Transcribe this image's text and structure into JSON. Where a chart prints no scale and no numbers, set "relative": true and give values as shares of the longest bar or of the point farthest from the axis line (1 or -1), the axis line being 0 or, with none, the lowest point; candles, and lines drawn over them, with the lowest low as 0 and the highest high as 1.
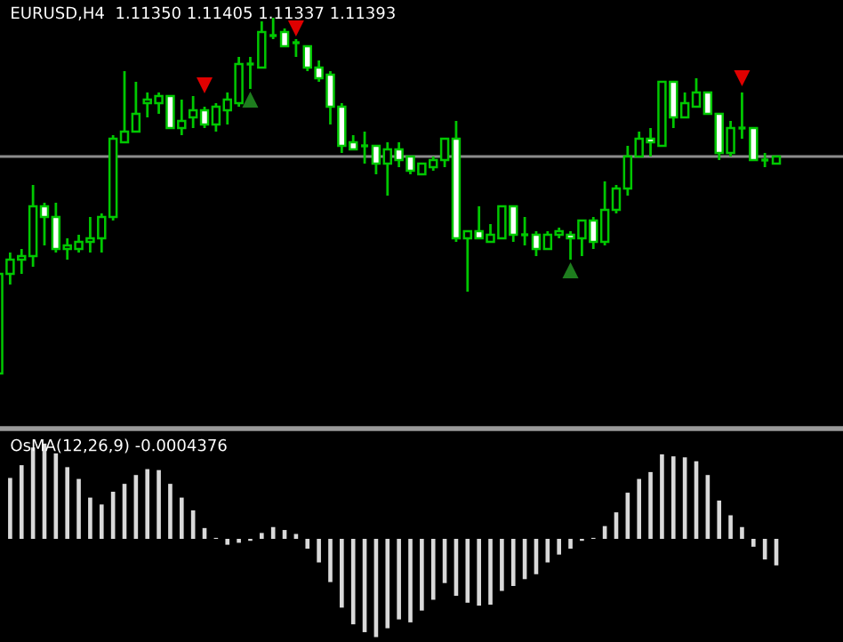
{
  "chart_data": [
    {
      "type": "candlestick",
      "relative": true,
      "title": "EURUSD,H4  1.11350 1.11405 1.11337 1.11393",
      "grid": false,
      "categories": [
        null,
        null,
        null,
        null,
        null,
        null,
        null,
        null,
        null,
        null,
        null,
        null,
        null,
        null,
        null,
        null,
        null,
        null,
        null,
        null,
        null,
        null,
        null,
        null,
        null,
        null,
        null,
        null,
        null,
        null,
        null,
        null,
        null,
        null,
        null,
        null,
        null,
        null,
        null,
        null,
        null,
        null,
        null,
        null,
        null,
        null,
        null,
        null,
        null,
        null,
        null,
        null,
        null,
        null,
        null,
        null,
        null,
        null,
        null,
        null,
        null,
        null,
        null,
        null,
        null,
        null,
        null,
        null,
        null
      ],
      "ohlc": [
        [
          0,
          0.28,
          0,
          0.28
        ],
        [
          0.28,
          0.34,
          0.25,
          0.32
        ],
        [
          0.32,
          0.35,
          0.28,
          0.33
        ],
        [
          0.33,
          0.53,
          0.3,
          0.47
        ],
        [
          0.47,
          0.48,
          0.36,
          0.44
        ],
        [
          0.44,
          0.48,
          0.34,
          0.35
        ],
        [
          0.35,
          0.38,
          0.32,
          0.36
        ],
        [
          0.35,
          0.39,
          0.34,
          0.37
        ],
        [
          0.37,
          0.44,
          0.34,
          0.38
        ],
        [
          0.38,
          0.45,
          0.34,
          0.44
        ],
        [
          0.44,
          0.67,
          0.43,
          0.66
        ],
        [
          0.65,
          0.85,
          0.65,
          0.68
        ],
        [
          0.68,
          0.82,
          0.68,
          0.73
        ],
        [
          0.76,
          0.79,
          0.72,
          0.77
        ],
        [
          0.76,
          0.79,
          0.73,
          0.78
        ],
        [
          0.78,
          0.78,
          0.69,
          0.69
        ],
        [
          0.69,
          0.77,
          0.67,
          0.71
        ],
        [
          0.72,
          0.78,
          0.69,
          0.74
        ],
        [
          0.74,
          0.75,
          0.69,
          0.7
        ],
        [
          0.7,
          0.76,
          0.68,
          0.75
        ],
        [
          0.74,
          0.79,
          0.7,
          0.77
        ],
        [
          0.76,
          0.89,
          0.75,
          0.87
        ],
        [
          0.87,
          0.89,
          0.8,
          0.87
        ],
        [
          0.86,
          0.99,
          0.86,
          0.96
        ],
        [
          0.95,
          1,
          0.94,
          0.95
        ],
        [
          0.96,
          0.97,
          0.92,
          0.92
        ],
        [
          0.93,
          0.94,
          0.89,
          0.93
        ],
        [
          0.92,
          0.92,
          0.85,
          0.86
        ],
        [
          0.86,
          0.88,
          0.82,
          0.83
        ],
        [
          0.84,
          0.85,
          0.7,
          0.75
        ],
        [
          0.75,
          0.76,
          0.62,
          0.64
        ],
        [
          0.65,
          0.67,
          0.63,
          0.63
        ],
        [
          0.64,
          0.68,
          0.59,
          0.64
        ],
        [
          0.64,
          0.64,
          0.56,
          0.59
        ],
        [
          0.59,
          0.65,
          0.5,
          0.63
        ],
        [
          0.63,
          0.65,
          0.58,
          0.6
        ],
        [
          0.61,
          0.61,
          0.56,
          0.57
        ],
        [
          0.56,
          0.59,
          0.56,
          0.59
        ],
        [
          0.58,
          0.61,
          0.57,
          0.6
        ],
        [
          0.6,
          0.66,
          0.58,
          0.66
        ],
        [
          0.66,
          0.71,
          0.37,
          0.38
        ],
        [
          0.38,
          0.4,
          0.23,
          0.4
        ],
        [
          0.4,
          0.47,
          0.38,
          0.38
        ],
        [
          0.37,
          0.42,
          0.37,
          0.39
        ],
        [
          0.38,
          0.47,
          0.38,
          0.47
        ],
        [
          0.47,
          0.47,
          0.37,
          0.39
        ],
        [
          0.39,
          0.44,
          0.36,
          0.39
        ],
        [
          0.39,
          0.4,
          0.33,
          0.35
        ],
        [
          0.35,
          0.4,
          0.35,
          0.39
        ],
        [
          0.39,
          0.41,
          0.38,
          0.4
        ],
        [
          0.39,
          0.4,
          0.32,
          0.38
        ],
        [
          0.38,
          0.43,
          0.33,
          0.43
        ],
        [
          0.43,
          0.44,
          0.35,
          0.37
        ],
        [
          0.37,
          0.54,
          0.36,
          0.46
        ],
        [
          0.46,
          0.53,
          0.45,
          0.52
        ],
        [
          0.52,
          0.64,
          0.5,
          0.61
        ],
        [
          0.61,
          0.68,
          0.61,
          0.66
        ],
        [
          0.66,
          0.69,
          0.61,
          0.65
        ],
        [
          0.64,
          0.82,
          0.64,
          0.82
        ],
        [
          0.82,
          0.82,
          0.69,
          0.72
        ],
        [
          0.72,
          0.79,
          0.72,
          0.76
        ],
        [
          0.75,
          0.83,
          0.75,
          0.79
        ],
        [
          0.79,
          0.79,
          0.73,
          0.73
        ],
        [
          0.73,
          0.73,
          0.6,
          0.62
        ],
        [
          0.62,
          0.71,
          0.61,
          0.69
        ],
        [
          0.69,
          0.79,
          0.66,
          0.69
        ],
        [
          0.69,
          0.69,
          0.6,
          0.6
        ],
        [
          0.6,
          0.62,
          0.58,
          0.6
        ],
        [
          0.59,
          0.61,
          0.59,
          0.61
        ]
      ],
      "series": [
        {
          "type": "scatter",
          "color": "#e00000",
          "marker": "triangle",
          "values": [
            null,
            null,
            null,
            null,
            null,
            null,
            null,
            null,
            null,
            null,
            null,
            null,
            null,
            null,
            null,
            null,
            null,
            null,
            0.81,
            null,
            null,
            null,
            null,
            null,
            null,
            null,
            0.97,
            null,
            null,
            null,
            null,
            null,
            null,
            null,
            null,
            null,
            null,
            null,
            null,
            null,
            null,
            null,
            null,
            null,
            null,
            null,
            null,
            null,
            null,
            null,
            null,
            null,
            null,
            null,
            null,
            null,
            null,
            null,
            null,
            null,
            null,
            null,
            null,
            null,
            null,
            0.83,
            null,
            null,
            null
          ]
        },
        {
          "type": "scatter",
          "color": "#1e7d1e",
          "marker": "triangle",
          "values": [
            null,
            null,
            null,
            null,
            null,
            null,
            null,
            null,
            null,
            null,
            null,
            null,
            null,
            null,
            null,
            null,
            null,
            null,
            null,
            null,
            null,
            null,
            0.77,
            null,
            null,
            null,
            null,
            null,
            null,
            null,
            null,
            null,
            null,
            null,
            null,
            null,
            null,
            null,
            null,
            null,
            null,
            null,
            null,
            null,
            null,
            null,
            null,
            null,
            null,
            null,
            0.29,
            null,
            null,
            null,
            null,
            null,
            null,
            null,
            null,
            null,
            null,
            null,
            null,
            null,
            null,
            null,
            null,
            null,
            null
          ]
        }
      ],
      "ref_lines": [
        {
          "axis": "y",
          "value": 0.61,
          "color": "#8c8c8c"
        }
      ]
    },
    {
      "type": "bar",
      "relative": true,
      "title": "OsMA(12,26,9) -0.0004376",
      "grid": false,
      "color": "#d9d9d9",
      "categories": [
        null,
        null,
        null,
        null,
        null,
        null,
        null,
        null,
        null,
        null,
        null,
        null,
        null,
        null,
        null,
        null,
        null,
        null,
        null,
        null,
        null,
        null,
        null,
        null,
        null,
        null,
        null,
        null,
        null,
        null,
        null,
        null,
        null,
        null,
        null,
        null,
        null,
        null,
        null,
        null,
        null,
        null,
        null,
        null,
        null,
        null,
        null,
        null,
        null,
        null,
        null,
        null,
        null,
        null,
        null,
        null,
        null,
        null,
        null,
        null,
        null,
        null,
        null,
        null,
        null,
        null,
        null,
        null,
        null
      ],
      "values": [
        null,
        0.62,
        0.75,
        0.93,
        0.97,
        0.87,
        0.73,
        0.61,
        0.42,
        0.35,
        0.48,
        0.56,
        0.65,
        0.71,
        0.7,
        0.56,
        0.42,
        0.29,
        0.11,
        0.01,
        -0.06,
        -0.04,
        -0.02,
        0.06,
        0.12,
        0.09,
        0.05,
        -0.1,
        -0.24,
        -0.44,
        -0.7,
        -0.87,
        -0.95,
        -1,
        -0.91,
        -0.82,
        -0.85,
        -0.73,
        -0.62,
        -0.45,
        -0.58,
        -0.65,
        -0.68,
        -0.67,
        -0.53,
        -0.48,
        -0.41,
        -0.36,
        -0.24,
        -0.16,
        -0.1,
        -0.02,
        0.01,
        0.13,
        0.27,
        0.47,
        0.61,
        0.68,
        0.86,
        0.84,
        0.83,
        0.79,
        0.65,
        0.39,
        0.24,
        0.12,
        -0.08,
        -0.21,
        -0.27
      ]
    }
  ]
}
